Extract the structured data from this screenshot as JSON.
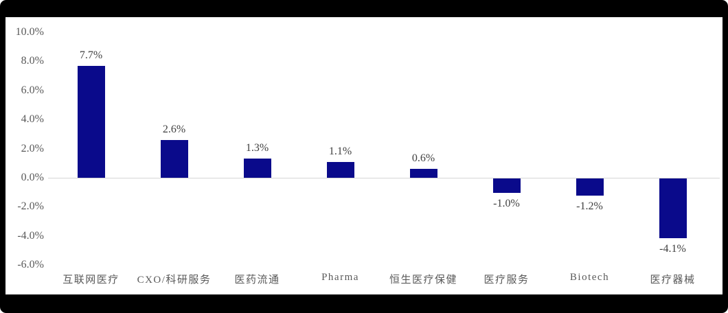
{
  "chart_data": {
    "type": "bar",
    "title": "",
    "xlabel": "",
    "ylabel": "",
    "categories": [
      "互联网医疗",
      "CXO/科研服务",
      "医药流通",
      "Pharma",
      "恒生医疗保健",
      "医疗服务",
      "Biotech",
      "医疗器械"
    ],
    "values": [
      7.7,
      2.6,
      1.3,
      1.1,
      0.6,
      -1.0,
      -1.2,
      -4.1
    ],
    "data_labels": [
      "7.7%",
      "2.6%",
      "1.3%",
      "1.1%",
      "0.6%",
      "-1.0%",
      "-1.2%",
      "-4.1%"
    ],
    "y_ticks": [
      "10.0%",
      "8.0%",
      "6.0%",
      "4.0%",
      "2.0%",
      "0.0%",
      "-2.0%",
      "-4.0%",
      "-6.0%"
    ],
    "y_tick_values": [
      10,
      8,
      6,
      4,
      2,
      0,
      -2,
      -4,
      -6
    ],
    "ylim": [
      -6,
      10
    ],
    "grid": false,
    "legend_position": "none",
    "colors": {
      "bar": "#0a0a8b",
      "axis_line": "#d6d6d6",
      "data_label": "#404040",
      "tick_label": "#595959",
      "frame": "#000000",
      "canvas": "#ffffff"
    }
  }
}
